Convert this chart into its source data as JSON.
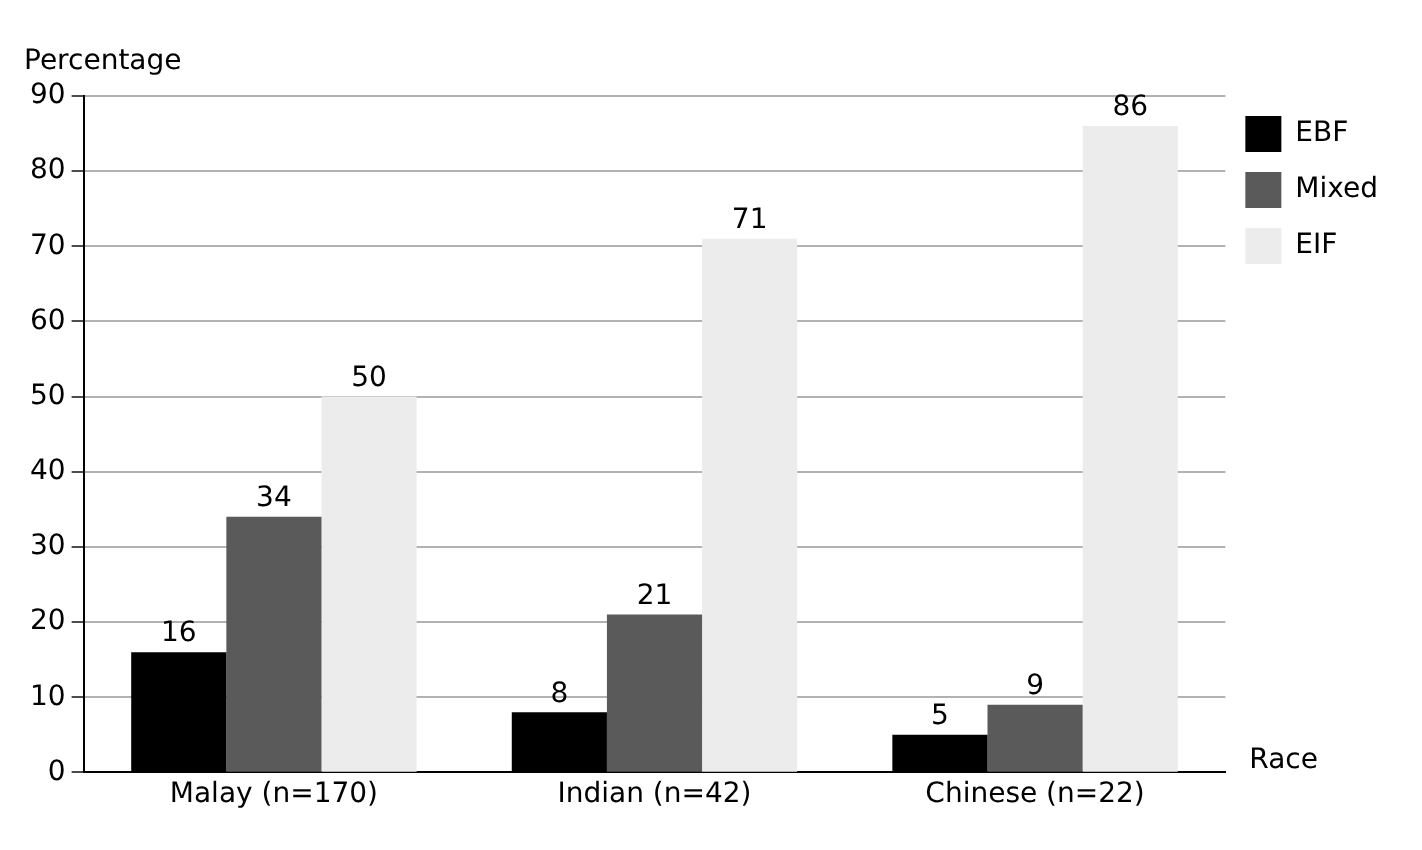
{
  "chart_data": {
    "type": "bar",
    "ylabel": "Percentage",
    "xlabel": "Race",
    "categories": [
      "Malay (n=170)",
      "Indian (n=42)",
      "Chinese (n=22)"
    ],
    "series": [
      {
        "name": "EBF",
        "color": "#000000",
        "values": [
          16,
          8,
          5
        ]
      },
      {
        "name": "Mixed",
        "color": "#5a5a5a",
        "values": [
          34,
          21,
          9
        ]
      },
      {
        "name": "EIF",
        "color": "#ececec",
        "values": [
          50,
          71,
          86
        ]
      }
    ],
    "ylim": [
      0,
      90
    ],
    "yticks": [
      0,
      10,
      20,
      30,
      40,
      50,
      60,
      70,
      80,
      90
    ],
    "grid": "y",
    "legend": "top right",
    "data_labels": true
  }
}
